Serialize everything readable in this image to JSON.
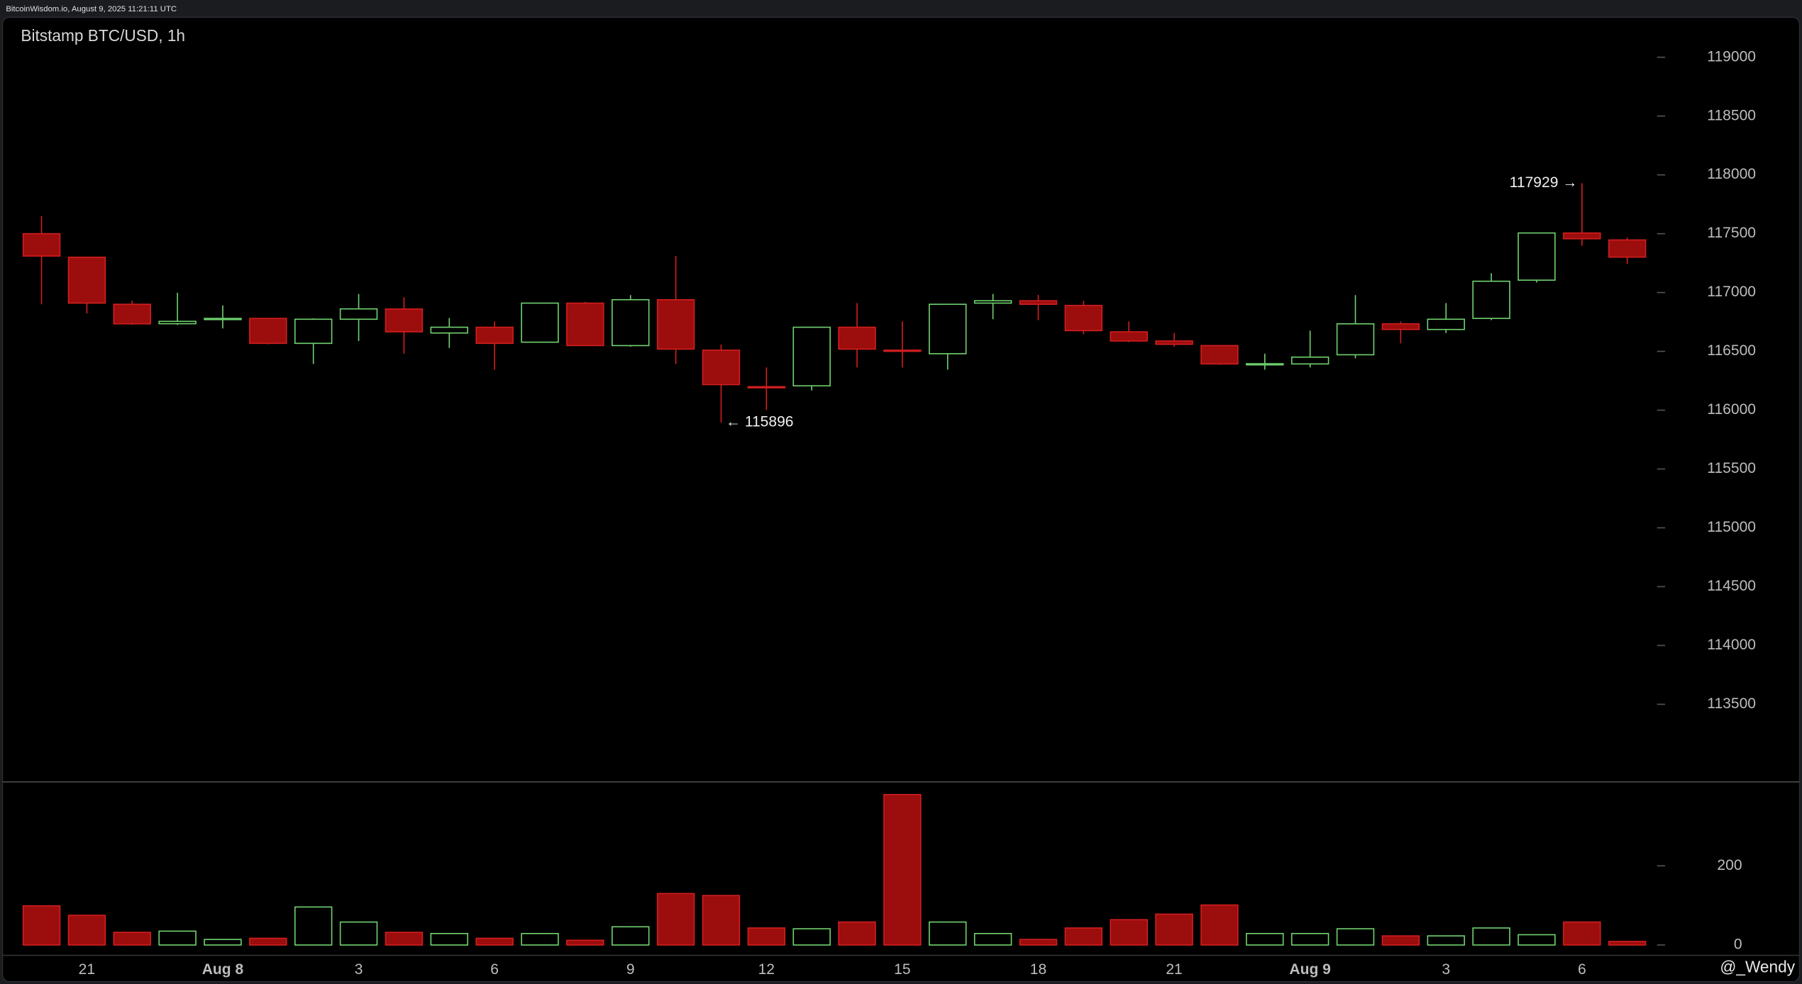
{
  "header": {
    "source": "BitcoinWisdom.io, August 9, 2025 11:21:11 UTC"
  },
  "watermark": "@_Wendy",
  "chart_data": {
    "type": "candlestick",
    "title": "Bitstamp BTC/USD, 1h",
    "categories": [
      null,
      "21",
      null,
      null,
      "Aug 8",
      null,
      null,
      "3",
      null,
      null,
      "6",
      null,
      null,
      "9",
      null,
      null,
      "12",
      null,
      null,
      "15",
      null,
      null,
      "18",
      null,
      null,
      "21",
      null,
      null,
      "Aug 9",
      null,
      null,
      "3",
      null,
      null,
      "6",
      null
    ],
    "open": [
      117500,
      117300,
      116900,
      116735,
      116770,
      116780,
      116568,
      116773,
      116860,
      116656,
      116705,
      116578,
      116910,
      116549,
      116939,
      116510,
      116200,
      116207,
      116705,
      116510,
      116480,
      116910,
      116930,
      116890,
      116666,
      116588,
      116549,
      116385,
      116393,
      116471,
      116734,
      116686,
      116780,
      117105,
      117506,
      117447
    ],
    "high": [
      117650,
      117300,
      116930,
      116998,
      116890,
      116780,
      116780,
      116988,
      116959,
      116783,
      116754,
      116910,
      116920,
      116978,
      117310,
      116558,
      116363,
      116705,
      116910,
      116754,
      116900,
      116988,
      116980,
      116930,
      116754,
      116656,
      116549,
      116480,
      116676,
      116978,
      116754,
      116910,
      117164,
      117506,
      117929,
      117467
    ],
    "low": [
      116900,
      116822,
      116725,
      116725,
      116695,
      116560,
      116393,
      116588,
      116480,
      116529,
      116344,
      116578,
      116549,
      116540,
      116393,
      115896,
      116002,
      116168,
      116363,
      116363,
      116344,
      116773,
      116765,
      116646,
      116578,
      116540,
      116385,
      116344,
      116363,
      116441,
      116568,
      116656,
      116765,
      117085,
      117398,
      117242
    ],
    "close": [
      117310,
      116910,
      116734,
      116755,
      116780,
      116568,
      116773,
      116861,
      116666,
      116705,
      116568,
      116910,
      116549,
      116939,
      116519,
      116217,
      116190,
      116705,
      116519,
      116500,
      116900,
      116930,
      116900,
      116676,
      116588,
      116560,
      116393,
      116395,
      116451,
      116734,
      116686,
      116773,
      117096,
      117506,
      117457,
      117301
    ],
    "volume": [
      99,
      75,
      32,
      35,
      14,
      17,
      96,
      58,
      32,
      29,
      17,
      29,
      12,
      46,
      130,
      125,
      43,
      41,
      58,
      380,
      58,
      29,
      14,
      43,
      64,
      78,
      101,
      29,
      29,
      41,
      23,
      23,
      43,
      26,
      58,
      9
    ],
    "up_color": "#6fd16f",
    "down_color": "#9c0d0d",
    "ylim": [
      112850,
      119340
    ],
    "yticks": [
      113500,
      114000,
      114500,
      115000,
      115500,
      116000,
      116500,
      117000,
      117500,
      118000,
      118500,
      119000
    ],
    "volume_ylim": [
      -26,
      409
    ],
    "volume_ticks": [
      0,
      200
    ],
    "annotations": [
      "117929 →",
      "← 115896"
    ]
  }
}
